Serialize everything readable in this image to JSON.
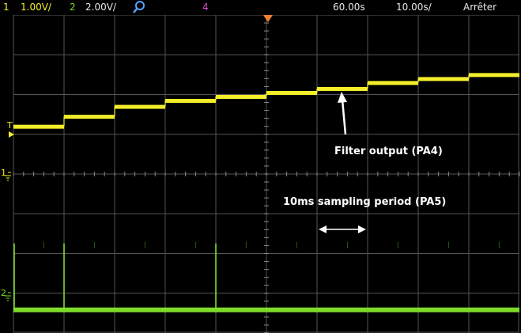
{
  "status_bar": {
    "ch1_number": "1",
    "ch1_scale": "1.00V/",
    "ch2_number": "2",
    "ch2_scale": "2.00V/",
    "ch4_number": "4",
    "time_delay": "60.00s",
    "timebase": "10.00s/",
    "run_state": "Arrêter"
  },
  "markers": {
    "trigger_label": "T",
    "ch1_label": "1",
    "ch2_label": "2"
  },
  "annotations": {
    "filter_output": "Filter output (PA4)",
    "sampling_period": "10ms sampling period (PA5)"
  },
  "colors": {
    "ch1": "#f4ee2a",
    "ch2": "#7ddc2a",
    "ch4": "#d84ac8",
    "zoom_icon": "#5aa0ff",
    "grid": "#555555",
    "text": "#e8e8e8"
  },
  "icons": {
    "zoom": "magnifier-icon",
    "trigger_marker": "triangle-right-icon",
    "delay_marker": "triangle-down-icon"
  },
  "chart_data": {
    "type": "line",
    "grid": true,
    "divisions": {
      "x": 10,
      "y": 8
    },
    "series": [
      {
        "name": "1",
        "values_div_from_center": [
          1.2,
          1.45,
          1.7,
          1.85,
          1.95,
          2.05,
          2.15,
          2.3,
          2.4,
          2.5
        ]
      },
      {
        "name": "2",
        "pulse_positions_div": [
          0.0,
          1.0,
          4.0
        ]
      }
    ]
  }
}
